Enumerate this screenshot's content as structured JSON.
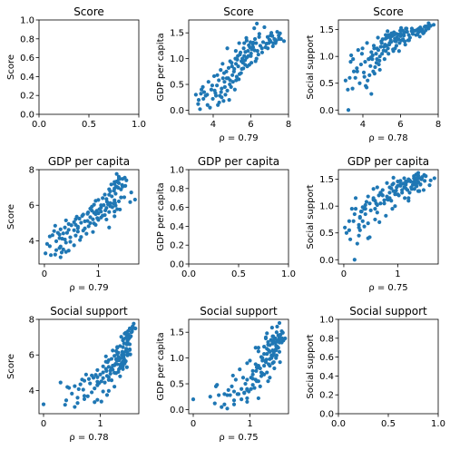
{
  "figure": {
    "point_color": "#1f77b4"
  },
  "chart_data": [
    {
      "type": "scatter",
      "title": "Score",
      "ylabel": "Score",
      "xlabel": "",
      "xlim": [
        0,
        1
      ],
      "ylim": [
        0,
        1
      ],
      "xticks": [
        0.0,
        0.5,
        1.0
      ],
      "yticks": [
        0.0,
        0.2,
        0.4,
        0.6,
        0.8,
        1.0
      ],
      "xtick_labels": [
        "0.0",
        "0.5",
        "1.0"
      ],
      "ytick_labels": [
        "0.0",
        "0.2",
        "0.4",
        "0.6",
        "0.8",
        "1.0"
      ],
      "empty": true
    },
    {
      "type": "scatter",
      "title": "Score",
      "ylabel": "GDP per capita",
      "xlabel": "ρ = 0.79",
      "xlim": [
        2.7,
        8.0
      ],
      "ylim": [
        -0.08,
        1.75
      ],
      "xticks": [
        4,
        6,
        8
      ],
      "yticks": [
        0.0,
        0.5,
        1.0,
        1.5
      ],
      "xtick_labels": [
        "4",
        "6",
        "8"
      ],
      "ytick_labels": [
        "0.0",
        "0.5",
        "1.0",
        "1.5"
      ],
      "x_var": "Score",
      "y_var": "GDP per capita"
    },
    {
      "type": "scatter",
      "title": "Score",
      "ylabel": "Social support",
      "xlabel": "ρ = 0.78",
      "xlim": [
        2.7,
        8.0
      ],
      "ylim": [
        -0.08,
        1.68
      ],
      "xticks": [
        4,
        6,
        8
      ],
      "yticks": [
        0.0,
        0.5,
        1.0,
        1.5
      ],
      "xtick_labels": [
        "4",
        "6",
        "8"
      ],
      "ytick_labels": [
        "0.0",
        "0.5",
        "1.0",
        "1.5"
      ],
      "x_var": "Score",
      "y_var": "Social support"
    },
    {
      "type": "scatter",
      "title": "GDP per capita",
      "ylabel": "Score",
      "xlabel": "ρ = 0.79",
      "xlim": [
        -0.1,
        1.75
      ],
      "ylim": [
        2.7,
        8.0
      ],
      "xticks": [
        0,
        1
      ],
      "yticks": [
        4,
        6,
        8
      ],
      "xtick_labels": [
        "0",
        "1"
      ],
      "ytick_labels": [
        "4",
        "6",
        "8"
      ],
      "x_var": "GDP per capita",
      "y_var": "Score"
    },
    {
      "type": "scatter",
      "title": "GDP per capita",
      "ylabel": "GDP per capita",
      "xlabel": "",
      "xlim": [
        0,
        1
      ],
      "ylim": [
        0,
        1
      ],
      "xticks": [
        0.0,
        0.5,
        1.0
      ],
      "yticks": [
        0.0,
        0.2,
        0.4,
        0.6,
        0.8,
        1.0
      ],
      "xtick_labels": [
        "0.0",
        "0.5",
        "1.0"
      ],
      "ytick_labels": [
        "0.0",
        "0.2",
        "0.4",
        "0.6",
        "0.8",
        "1.0"
      ],
      "empty": true
    },
    {
      "type": "scatter",
      "title": "GDP per capita",
      "ylabel": "Social support",
      "xlabel": "ρ = 0.75",
      "xlim": [
        -0.1,
        1.75
      ],
      "ylim": [
        -0.08,
        1.68
      ],
      "xticks": [
        0,
        1
      ],
      "yticks": [
        0.0,
        0.5,
        1.0,
        1.5
      ],
      "xtick_labels": [
        "0",
        "1"
      ],
      "ytick_labels": [
        "0.0",
        "0.5",
        "1.0",
        "1.5"
      ],
      "x_var": "GDP per capita",
      "y_var": "Social support"
    },
    {
      "type": "scatter",
      "title": "Social support",
      "ylabel": "Score",
      "xlabel": "ρ = 0.78",
      "xlim": [
        -0.08,
        1.68
      ],
      "ylim": [
        2.7,
        8.0
      ],
      "xticks": [
        0,
        1
      ],
      "yticks": [
        4,
        6,
        8
      ],
      "xtick_labels": [
        "0",
        "1"
      ],
      "ytick_labels": [
        "4",
        "6",
        "8"
      ],
      "x_var": "Social support",
      "y_var": "Score"
    },
    {
      "type": "scatter",
      "title": "Social support",
      "ylabel": "GDP per capita",
      "xlabel": "ρ = 0.75",
      "xlim": [
        -0.08,
        1.68
      ],
      "ylim": [
        -0.08,
        1.75
      ],
      "xticks": [
        0,
        1
      ],
      "yticks": [
        0.0,
        0.5,
        1.0,
        1.5
      ],
      "xtick_labels": [
        "0",
        "1"
      ],
      "ytick_labels": [
        "0.0",
        "0.5",
        "1.0",
        "1.5"
      ],
      "x_var": "Social support",
      "y_var": "GDP per capita"
    },
    {
      "type": "scatter",
      "title": "Social support",
      "ylabel": "Social support",
      "xlabel": "",
      "xlim": [
        0,
        1
      ],
      "ylim": [
        0,
        1
      ],
      "xticks": [
        0.0,
        0.5,
        1.0
      ],
      "yticks": [
        0.0,
        0.2,
        0.4,
        0.6,
        0.8,
        1.0
      ],
      "xtick_labels": [
        "0.0",
        "0.5",
        "1.0"
      ],
      "ytick_labels": [
        "0.0",
        "0.2",
        "0.4",
        "0.6",
        "0.8",
        "1.0"
      ],
      "empty": true
    }
  ],
  "points": [
    {
      "score": 7.76,
      "gdp": 1.34,
      "social": 1.59
    },
    {
      "score": 7.6,
      "gdp": 1.38,
      "social": 1.57
    },
    {
      "score": 7.55,
      "gdp": 1.49,
      "social": 1.58
    },
    {
      "score": 7.49,
      "gdp": 1.38,
      "social": 1.62
    },
    {
      "score": 7.49,
      "gdp": 1.4,
      "social": 1.52
    },
    {
      "score": 7.48,
      "gdp": 1.45,
      "social": 1.53
    },
    {
      "score": 7.34,
      "gdp": 1.34,
      "social": 1.49
    },
    {
      "score": 7.31,
      "gdp": 1.3,
      "social": 1.56
    },
    {
      "score": 7.28,
      "gdp": 1.37,
      "social": 1.55
    },
    {
      "score": 7.25,
      "gdp": 1.38,
      "social": 1.45
    },
    {
      "score": 7.2,
      "gdp": 1.3,
      "social": 1.43
    },
    {
      "score": 7.17,
      "gdp": 1.24,
      "social": 1.46
    },
    {
      "score": 7.14,
      "gdp": 1.44,
      "social": 1.5
    },
    {
      "score": 7.09,
      "gdp": 1.5,
      "social": 1.47
    },
    {
      "score": 7.05,
      "gdp": 1.33,
      "social": 1.51
    },
    {
      "score": 7.02,
      "gdp": 1.35,
      "social": 1.37
    },
    {
      "score": 6.98,
      "gdp": 1.37,
      "social": 1.52
    },
    {
      "score": 6.89,
      "gdp": 1.42,
      "social": 1.41
    },
    {
      "score": 6.82,
      "gdp": 1.29,
      "social": 1.4
    },
    {
      "score": 6.72,
      "gdp": 1.61,
      "social": 1.48
    },
    {
      "score": 6.59,
      "gdp": 1.2,
      "social": 1.47
    },
    {
      "score": 6.44,
      "gdp": 1.42,
      "social": 1.4
    },
    {
      "score": 6.35,
      "gdp": 1.15,
      "social": 1.46
    },
    {
      "score": 6.32,
      "gdp": 1.68,
      "social": 1.52
    },
    {
      "score": 6.3,
      "gdp": 1.0,
      "social": 1.46
    },
    {
      "score": 6.2,
      "gdp": 1.16,
      "social": 1.45
    },
    {
      "score": 6.18,
      "gdp": 1.59,
      "social": 1.39
    },
    {
      "score": 6.13,
      "gdp": 1.31,
      "social": 1.32
    },
    {
      "score": 6.12,
      "gdp": 1.22,
      "social": 1.48
    },
    {
      "score": 6.03,
      "gdp": 0.92,
      "social": 1.53
    },
    {
      "score": 6.01,
      "gdp": 1.1,
      "social": 1.42
    },
    {
      "score": 5.95,
      "gdp": 1.22,
      "social": 1.25
    },
    {
      "score": 5.89,
      "gdp": 1.26,
      "social": 1.32
    },
    {
      "score": 5.87,
      "gdp": 1.05,
      "social": 1.41
    },
    {
      "score": 5.81,
      "gdp": 0.85,
      "social": 1.35
    },
    {
      "score": 5.76,
      "gdp": 1.4,
      "social": 1.28
    },
    {
      "score": 5.71,
      "gdp": 1.13,
      "social": 1.15
    },
    {
      "score": 5.69,
      "gdp": 0.97,
      "social": 1.29
    },
    {
      "score": 5.65,
      "gdp": 1.3,
      "social": 1.45
    },
    {
      "score": 5.6,
      "gdp": 0.81,
      "social": 1.13
    },
    {
      "score": 5.55,
      "gdp": 1.0,
      "social": 1.38
    },
    {
      "score": 5.5,
      "gdp": 0.95,
      "social": 1.27
    },
    {
      "score": 5.45,
      "gdp": 1.12,
      "social": 1.35
    },
    {
      "score": 5.4,
      "gdp": 0.7,
      "social": 1.22
    },
    {
      "score": 5.36,
      "gdp": 0.6,
      "social": 1.05
    },
    {
      "score": 5.31,
      "gdp": 1.05,
      "social": 1.47
    },
    {
      "score": 5.25,
      "gdp": 0.65,
      "social": 1.2
    },
    {
      "score": 5.21,
      "gdp": 0.9,
      "social": 1.4
    },
    {
      "score": 5.15,
      "gdp": 0.4,
      "social": 0.95
    },
    {
      "score": 5.1,
      "gdp": 0.75,
      "social": 1.11
    },
    {
      "score": 5.05,
      "gdp": 0.55,
      "social": 1.32
    },
    {
      "score": 5.0,
      "gdp": 0.85,
      "social": 1.25
    },
    {
      "score": 4.95,
      "gdp": 0.45,
      "social": 1.18
    },
    {
      "score": 4.9,
      "gdp": 0.95,
      "social": 1.0
    },
    {
      "score": 4.85,
      "gdp": 0.2,
      "social": 0.85
    },
    {
      "score": 4.8,
      "gdp": 0.62,
      "social": 1.35
    },
    {
      "score": 4.75,
      "gdp": 0.38,
      "social": 0.95
    },
    {
      "score": 4.7,
      "gdp": 0.75,
      "social": 1.05
    },
    {
      "score": 4.65,
      "gdp": 0.3,
      "social": 0.8
    },
    {
      "score": 4.6,
      "gdp": 0.55,
      "social": 1.15
    },
    {
      "score": 4.55,
      "gdp": 0.18,
      "social": 0.72
    },
    {
      "score": 4.5,
      "gdp": 0.9,
      "social": 0.95
    },
    {
      "score": 4.45,
      "gdp": 0.42,
      "social": 1.08
    },
    {
      "score": 4.4,
      "gdp": 0.78,
      "social": 0.82
    },
    {
      "score": 4.35,
      "gdp": 0.28,
      "social": 0.65
    },
    {
      "score": 4.3,
      "gdp": 0.58,
      "social": 0.95
    },
    {
      "score": 4.25,
      "gdp": 0.1,
      "social": 0.55
    },
    {
      "score": 4.2,
      "gdp": 0.48,
      "social": 0.42
    },
    {
      "score": 4.12,
      "gdp": 0.33,
      "social": 0.9
    },
    {
      "score": 4.05,
      "gdp": 0.66,
      "social": 0.7
    },
    {
      "score": 3.98,
      "gdp": 0.22,
      "social": 1.15
    },
    {
      "score": 3.9,
      "gdp": 0.4,
      "social": 0.85
    },
    {
      "score": 3.83,
      "gdp": 0.05,
      "social": 0.5
    },
    {
      "score": 3.75,
      "gdp": 0.55,
      "social": 1.12
    },
    {
      "score": 3.68,
      "gdp": 0.3,
      "social": 0.78
    },
    {
      "score": 3.6,
      "gdp": 0.28,
      "social": 0.6
    },
    {
      "score": 3.52,
      "gdp": 0.35,
      "social": 0.72
    },
    {
      "score": 3.45,
      "gdp": 0.45,
      "social": 0.4
    },
    {
      "score": 3.38,
      "gdp": 0.4,
      "social": 1.02
    },
    {
      "score": 3.3,
      "gdp": 0.02,
      "social": 0.6
    },
    {
      "score": 3.23,
      "gdp": 0.2,
      "social": 0.0
    },
    {
      "score": 3.08,
      "gdp": 0.3,
      "social": 0.55
    },
    {
      "score": 6.5,
      "gdp": 1.25,
      "social": 1.35
    },
    {
      "score": 6.4,
      "gdp": 1.08,
      "social": 1.3
    },
    {
      "score": 6.25,
      "gdp": 0.95,
      "social": 1.22
    },
    {
      "score": 6.05,
      "gdp": 1.18,
      "social": 1.3
    },
    {
      "score": 5.92,
      "gdp": 0.88,
      "social": 1.1
    },
    {
      "score": 5.78,
      "gdp": 1.02,
      "social": 1.2
    },
    {
      "score": 5.62,
      "gdp": 1.2,
      "social": 1.1
    },
    {
      "score": 5.48,
      "gdp": 0.72,
      "social": 1.3
    },
    {
      "score": 5.33,
      "gdp": 0.85,
      "social": 1.15
    },
    {
      "score": 5.18,
      "gdp": 1.0,
      "social": 1.22
    },
    {
      "score": 5.02,
      "gdp": 0.68,
      "social": 1.05
    },
    {
      "score": 4.88,
      "gdp": 0.5,
      "social": 0.92
    },
    {
      "score": 4.72,
      "gdp": 0.62,
      "social": 0.88
    },
    {
      "score": 4.58,
      "gdp": 0.72,
      "social": 1.2
    },
    {
      "score": 4.42,
      "gdp": 0.35,
      "social": 0.98
    },
    {
      "score": 6.65,
      "gdp": 1.32,
      "social": 1.42
    },
    {
      "score": 6.78,
      "gdp": 1.22,
      "social": 1.48
    },
    {
      "score": 6.95,
      "gdp": 1.3,
      "social": 1.45
    },
    {
      "score": 7.05,
      "gdp": 1.45,
      "social": 1.54
    },
    {
      "score": 6.0,
      "gdp": 1.05,
      "social": 1.38
    },
    {
      "score": 5.85,
      "gdp": 1.15,
      "social": 1.4
    },
    {
      "score": 5.7,
      "gdp": 0.88,
      "social": 1.33
    },
    {
      "score": 5.42,
      "gdp": 1.08,
      "social": 1.25
    },
    {
      "score": 5.28,
      "gdp": 0.98,
      "social": 1.35
    },
    {
      "score": 5.12,
      "gdp": 0.8,
      "social": 1.18
    },
    {
      "score": 4.98,
      "gdp": 0.92,
      "social": 1.28
    },
    {
      "score": 6.22,
      "gdp": 1.38,
      "social": 1.28
    },
    {
      "score": 6.1,
      "gdp": 1.28,
      "social": 1.4
    },
    {
      "score": 5.58,
      "gdp": 0.92,
      "social": 1.42
    },
    {
      "score": 4.62,
      "gdp": 0.45,
      "social": 0.68
    },
    {
      "score": 4.32,
      "gdp": 0.15,
      "social": 0.95
    },
    {
      "score": 4.15,
      "gdp": 0.28,
      "social": 0.45
    },
    {
      "score": 3.95,
      "gdp": 0.48,
      "social": 1.05
    },
    {
      "score": 3.7,
      "gdp": 0.1,
      "social": 0.72
    },
    {
      "score": 3.48,
      "gdp": 0.22,
      "social": 0.95
    },
    {
      "score": 7.4,
      "gdp": 1.52,
      "social": 1.56
    },
    {
      "score": 6.9,
      "gdp": 1.2,
      "social": 1.5
    },
    {
      "score": 6.6,
      "gdp": 1.12,
      "social": 1.52
    },
    {
      "score": 6.28,
      "gdp": 1.3,
      "social": 1.52
    },
    {
      "score": 5.98,
      "gdp": 1.32,
      "social": 1.48
    },
    {
      "score": 5.52,
      "gdp": 0.8,
      "social": 1.43
    },
    {
      "score": 5.22,
      "gdp": 0.58,
      "social": 1.1
    },
    {
      "score": 4.82,
      "gdp": 0.82,
      "social": 1.12
    },
    {
      "score": 4.52,
      "gdp": 0.62,
      "social": 1.02
    },
    {
      "score": 4.22,
      "gdp": 0.68,
      "social": 1.25
    },
    {
      "score": 6.45,
      "gdp": 1.48,
      "social": 1.3
    },
    {
      "score": 5.78,
      "gdp": 1.35,
      "social": 1.42
    },
    {
      "score": 5.38,
      "gdp": 1.3,
      "social": 1.4
    },
    {
      "score": 5.2,
      "gdp": 1.15,
      "social": 1.33
    },
    {
      "score": 4.9,
      "gdp": 0.58,
      "social": 0.75
    },
    {
      "score": 4.45,
      "gdp": 0.25,
      "social": 0.3
    },
    {
      "score": 4.08,
      "gdp": 0.38,
      "social": 0.62
    },
    {
      "score": 3.35,
      "gdp": 0.32,
      "social": 0.9
    },
    {
      "score": 3.2,
      "gdp": 0.12,
      "social": 0.38
    },
    {
      "score": 4.75,
      "gdp": 1.2,
      "social": 1.15
    },
    {
      "score": 5.65,
      "gdp": 1.05,
      "social": 1.4
    }
  ]
}
